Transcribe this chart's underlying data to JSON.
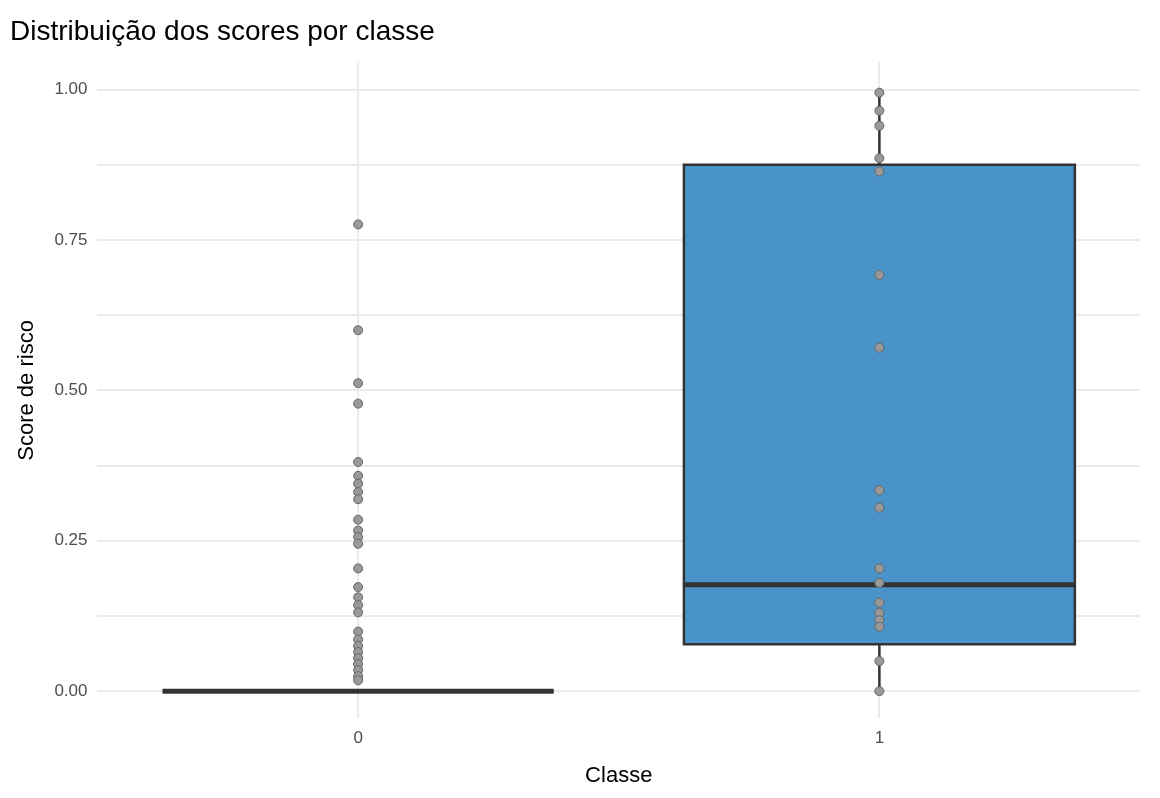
{
  "chart_data": {
    "type": "box",
    "title": "Distribuição dos scores por classe",
    "xlabel": "Classe",
    "ylabel": "Score de risco",
    "categories": [
      "0",
      "1"
    ],
    "ylim": [
      -0.045,
      1.045
    ],
    "yticks": [
      {
        "value": 0,
        "label": "0.00"
      },
      {
        "value": 0.125,
        "label": null
      },
      {
        "value": 0.25,
        "label": "0.25"
      },
      {
        "value": 0.375,
        "label": null
      },
      {
        "value": 0.5,
        "label": "0.50"
      },
      {
        "value": 0.625,
        "label": null
      },
      {
        "value": 0.75,
        "label": "0.75"
      },
      {
        "value": 0.875,
        "label": null
      },
      {
        "value": 1,
        "label": "1.00"
      }
    ],
    "grid": true,
    "legend": false,
    "marker": "circle",
    "series": [
      {
        "colors": [
          "#333333",
          "#4a93c8"
        ],
        "boxes": [
          {
            "low": 0,
            "q1": 0,
            "median": 0,
            "q3": 0,
            "high": 0
          },
          {
            "low": 0,
            "q1": 0.078,
            "median": 0.177,
            "q3": 0.875,
            "high": 0.995
          }
        ]
      },
      {
        "type": "scatter",
        "color": "#999999",
        "x": [
          "0",
          "0",
          "0",
          "0",
          "0",
          "0",
          "0",
          "0",
          "0",
          "0",
          "0",
          "0",
          "0",
          "0",
          "0",
          "0",
          "0",
          "0",
          "0",
          "0",
          "0",
          "0",
          "0",
          "0",
          "0",
          "0",
          "0",
          "1",
          "1",
          "1",
          "1",
          "1",
          "1",
          "1",
          "1",
          "1",
          "1",
          "1",
          "1",
          "1",
          "1",
          "1",
          "1",
          "1"
        ],
        "values": [
          0.776,
          0.6,
          0.512,
          0.478,
          0.381,
          0.358,
          0.345,
          0.331,
          0.319,
          0.285,
          0.267,
          0.256,
          0.245,
          0.204,
          0.173,
          0.156,
          0.143,
          0.131,
          0.099,
          0.086,
          0.075,
          0.065,
          0.055,
          0.045,
          0.035,
          0.025,
          0.018,
          0.995,
          0.965,
          0.94,
          0.886,
          0.864,
          0.692,
          0.571,
          0.334,
          0.305,
          0.204,
          0.18,
          0.147,
          0.13,
          0.118,
          0.107,
          0.05,
          0
        ]
      }
    ]
  }
}
